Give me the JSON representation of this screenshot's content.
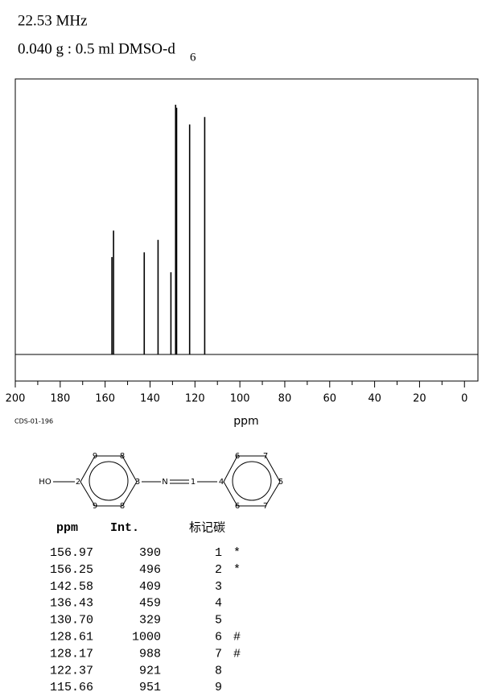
{
  "chart_data": {
    "type": "spectrum",
    "title": "22.53 MHz",
    "subtitle": "0.040 g : 0.5 ml DMSO-d",
    "subtitle_subscript": "6",
    "code": "CDS-01-196",
    "xlabel": "ppm",
    "xlim": [
      200,
      -6
    ],
    "xticks": [
      200,
      180,
      160,
      140,
      120,
      100,
      80,
      60,
      40,
      20,
      0
    ],
    "xminorticks": [
      190,
      170,
      150,
      130,
      110,
      90,
      70,
      50,
      30,
      10
    ],
    "x": [
      156.97,
      156.25,
      142.58,
      136.43,
      130.7,
      128.61,
      128.17,
      122.37,
      115.66
    ],
    "values": [
      390,
      496,
      409,
      459,
      329,
      1000,
      988,
      921,
      951
    ],
    "color": "#000000"
  },
  "structure": {
    "labels": [
      "HO",
      "2",
      "9",
      "8",
      "3",
      "9",
      "8",
      "N",
      "1",
      "4",
      "6",
      "7",
      "5",
      "6",
      "7"
    ]
  },
  "table": {
    "header": [
      "ppm",
      "Int.",
      "标记碳"
    ],
    "rows": [
      [
        "156.97",
        "390",
        "1",
        "*"
      ],
      [
        "156.25",
        "496",
        "2",
        "*"
      ],
      [
        "142.58",
        "409",
        "3",
        ""
      ],
      [
        "136.43",
        "459",
        "4",
        ""
      ],
      [
        "130.70",
        "329",
        "5",
        ""
      ],
      [
        "128.61",
        "1000",
        "6",
        "#"
      ],
      [
        "128.17",
        "988",
        "7",
        "#"
      ],
      [
        "122.37",
        "921",
        "8",
        ""
      ],
      [
        "115.66",
        "951",
        "9",
        ""
      ]
    ]
  }
}
